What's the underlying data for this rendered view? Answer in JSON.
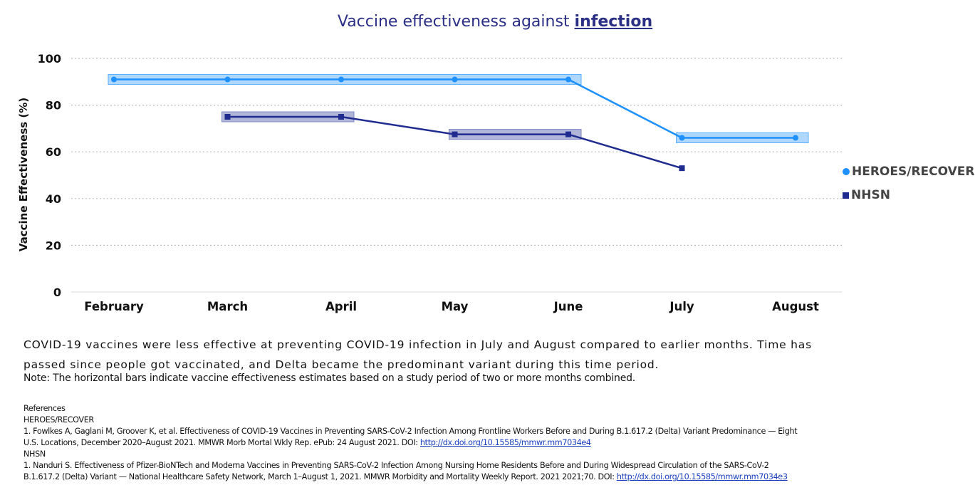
{
  "chart_data": {
    "type": "line",
    "title_prefix": "Vaccine effectiveness against ",
    "title_emphasis": "infection",
    "ylabel": "Vaccine Effectiveness (%)",
    "xlabel": "",
    "categories": [
      "February",
      "March",
      "April",
      "May",
      "June",
      "July",
      "August"
    ],
    "ylim": [
      0,
      100
    ],
    "yticks": [
      0,
      20,
      40,
      60,
      80,
      100
    ],
    "grid": true,
    "legend_position": "right",
    "series": [
      {
        "name": "HEROES/RECOVER",
        "color": "#1e90ff",
        "marker": "circle",
        "points": [
          {
            "x": "February",
            "y": 91
          },
          {
            "x": "March",
            "y": 91
          },
          {
            "x": "April",
            "y": 91
          },
          {
            "x": "May",
            "y": 91
          },
          {
            "x": "June",
            "y": 91
          },
          {
            "x": "July",
            "y": 66
          },
          {
            "x": "August",
            "y": 66
          }
        ],
        "bands": [
          {
            "from": "February",
            "to": "June",
            "value": 91
          },
          {
            "from": "July",
            "to": "August",
            "value": 66
          }
        ]
      },
      {
        "name": "NHSN",
        "color": "#1f2b8f",
        "marker": "square",
        "points": [
          {
            "x": "March",
            "y": 75
          },
          {
            "x": "April",
            "y": 75
          },
          {
            "x": "May",
            "y": 67.5
          },
          {
            "x": "June",
            "y": 67.5
          },
          {
            "x": "July",
            "y": 53
          }
        ],
        "bands": [
          {
            "from": "March",
            "to": "April",
            "value": 75
          },
          {
            "from": "May",
            "to": "June",
            "value": 67.5
          }
        ]
      }
    ]
  },
  "summary_line1": "COVID-19 vaccines were less effective at preventing COVID-19 infection in July and August compared to earlier months.  Time has",
  "summary_line2": "passed since people got vaccinated, and Delta became the predominant variant during this time period.",
  "note": "Note: The horizontal bars indicate vaccine effectiveness estimates based on a study period of two or more months combined.",
  "references": {
    "heading": "References",
    "group1_title": "HEROES/RECOVER",
    "group1_line1": "1.   Fowlkes  A, Gaglani M, Groover K, et al. Effectiveness of COVID-19 Vaccines in Preventing SARS-CoV-2 Infection Among Frontline Workers Before and During B.1.617.2 (Delta) Variant Predominance — Eight",
    "group1_line2": "U.S. Locations, December 2020–August 2021. MMWR Morb Mortal Wkly Rep. ePub: 24 August 2021. DOI: ",
    "group1_link": "http://dx.doi.org/10.15585/mmwr.mm7034e4",
    "group2_title": "NHSN",
    "group2_line1": "1.   Nanduri S. Effectiveness of Pfizer-BioNTech and Moderna Vaccines in Preventing SARS-CoV-2 Infection Among Nursing Home Residents Before and During Widespread Circulation of the SARS-CoV-2",
    "group2_line2": "B.1.617.2 (Delta) Variant — National Healthcare Safety Network, March 1–August 1, 2021. MMWR Morbidity and  Mortality Weekly Report. 2021 2021;70.  DOI: ",
    "group2_link": "http://dx.doi.org/10.15585/mmwr.mm7034e3"
  }
}
